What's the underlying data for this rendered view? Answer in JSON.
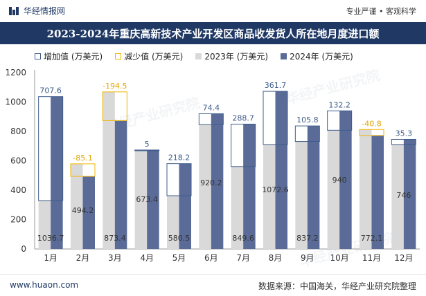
{
  "header": {
    "brand": "华经情报网",
    "tags": "专业严谨 • 客观科学",
    "title": "2023-2024年重庆高新技术产业开发区商品收发货人所在地月度进口额"
  },
  "legend": {
    "increase": "增加值 (万美元)",
    "decrease": "减少值 (万美元)",
    "y2023": "2023年 (万美元)",
    "y2024": "2024年 (万美元)"
  },
  "colors": {
    "y2023": "#d9d9d9",
    "y2024": "#5a6b98",
    "increase": "#3e5c8a",
    "decrease": "#f0b400",
    "header": "#1f3864"
  },
  "chart_data": {
    "type": "bar",
    "title": "2023-2024年重庆高新技术产业开发区商品收发货人所在地月度进口额",
    "categories": [
      "1月",
      "2月",
      "3月",
      "4月",
      "5月",
      "6月",
      "7月",
      "8月",
      "9月",
      "10月",
      "11月",
      "12月"
    ],
    "series": [
      {
        "name": "2023年 (万美元)",
        "values": [
          329.1,
          579.3,
          1068.9,
          668.4,
          362.3,
          845.8,
          560.9,
          710.9,
          731.4,
          807.8,
          812.9,
          710.7
        ]
      },
      {
        "name": "2024年 (万美元)",
        "values": [
          1036.7,
          494.2,
          873.4,
          673.4,
          580.5,
          920.2,
          849.6,
          1072.6,
          837.2,
          940,
          772.1,
          746
        ]
      }
    ],
    "change_labels": [
      "707.6",
      "-85.1",
      "-194.5",
      "5",
      "218.2",
      "74.4",
      "288.7",
      "361.7",
      "105.8",
      "132.2",
      "-40.8",
      "35.3"
    ],
    "value_labels": [
      "1036.7",
      "494.2",
      "873.4",
      "673.4",
      "580.5",
      "920.2",
      "849.6",
      "1072.6",
      "837.2",
      "940",
      "772.1",
      "746"
    ],
    "y_ticks": [
      "0",
      "200",
      "400",
      "600",
      "800",
      "1000",
      "1200"
    ],
    "ylim": [
      0,
      1200
    ],
    "xlabel": "",
    "ylabel": "",
    "legend_position": "top-left"
  },
  "watermark": "华经产业研究院",
  "footer": {
    "site": "www.huaon.com",
    "source": "数据来源：中国海关，华经产业研究院整理"
  }
}
